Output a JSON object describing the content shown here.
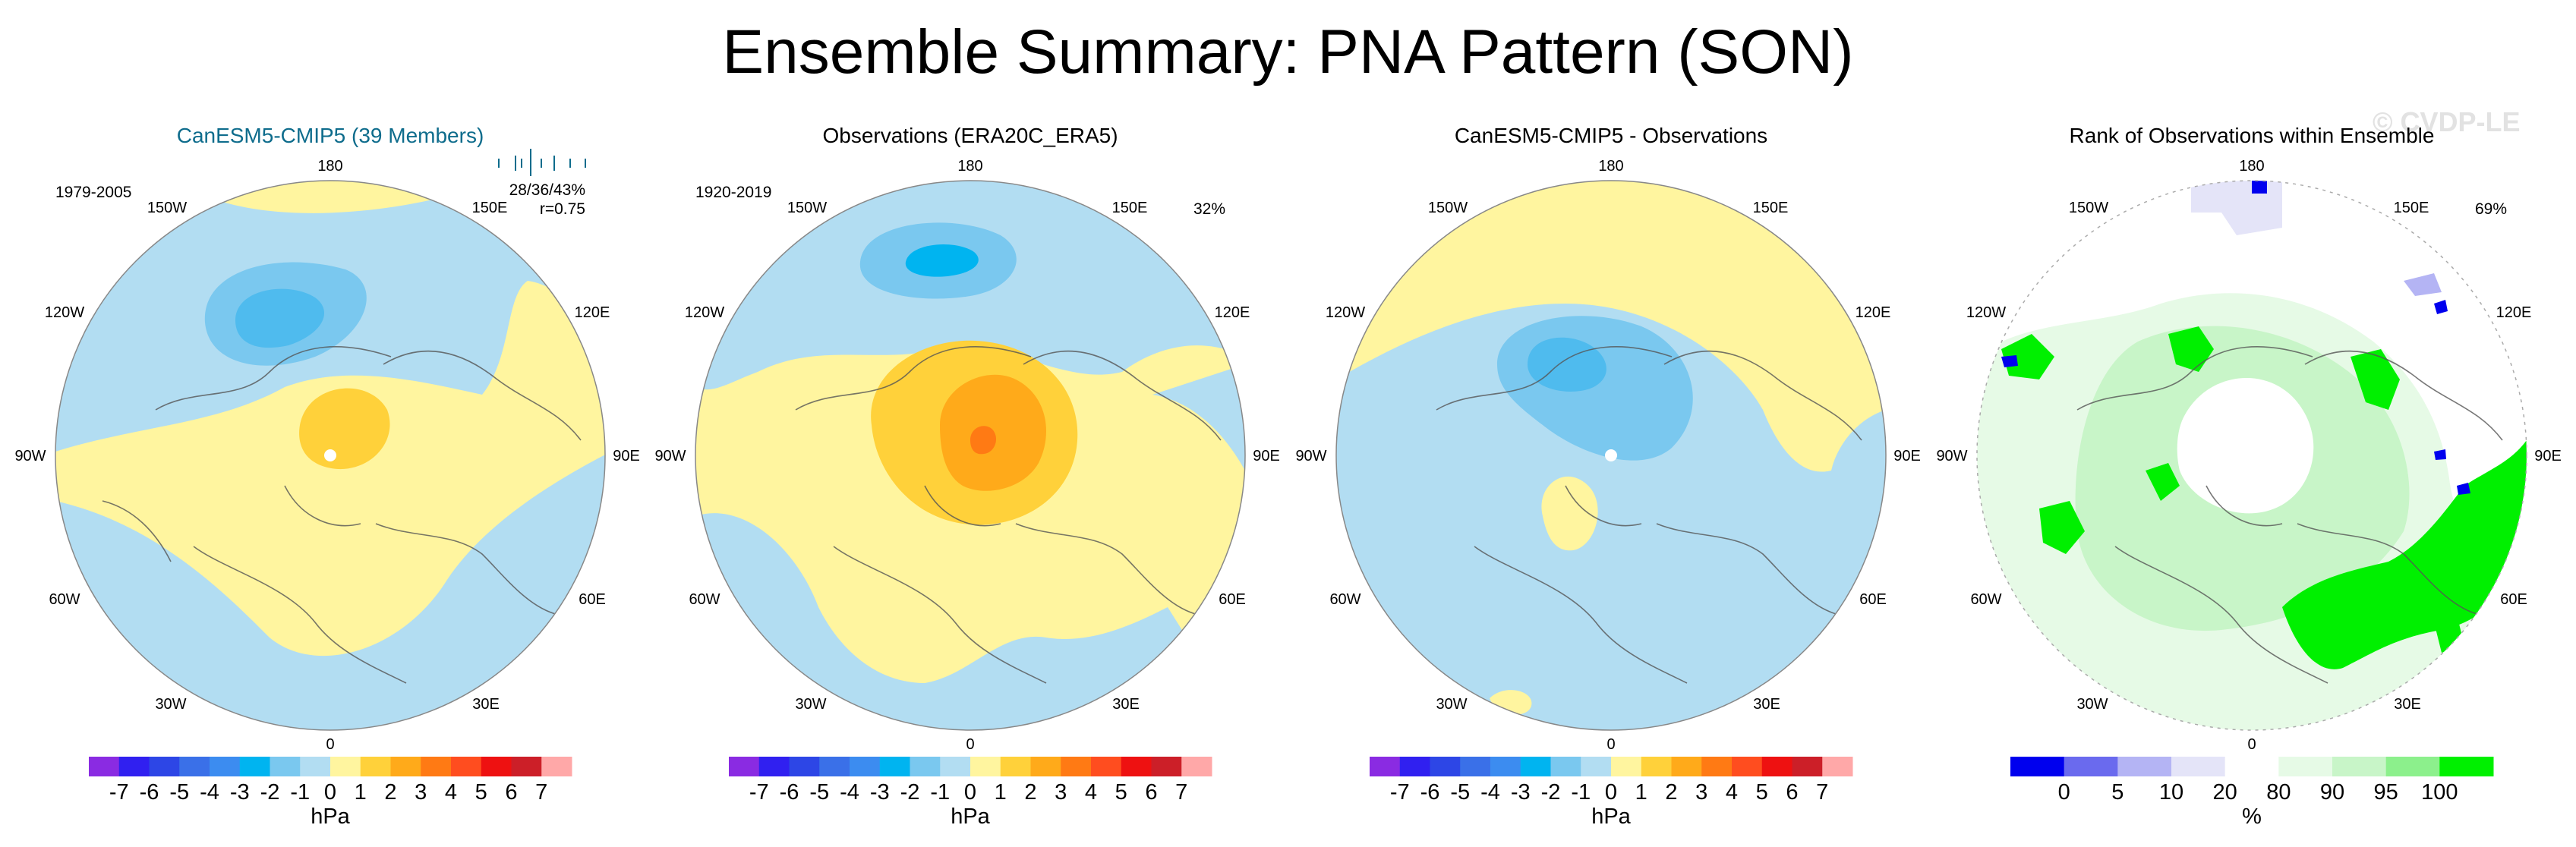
{
  "title": "Ensemble Summary: PNA Pattern (SON)",
  "watermark": "© CVDP-LE",
  "colors": {
    "neg_light": "#b2ddf2",
    "neg_mid": "#7ac8ef",
    "neg_strong": "#4fbbee",
    "neg_core": "#00b4f0",
    "pos_light": "#fff59f",
    "pos_mid": "#ffd13a",
    "pos_strong": "#ffaa1a",
    "pos_core": "#ff7a14",
    "rank_green": "#00f000",
    "rank_blue": "#0000ee",
    "rank_light_green": "#d9f8d9",
    "title_blue": "#0e6c8c",
    "land_line": "#555555"
  },
  "chart_data": [
    {
      "type": "heatmap",
      "title": "CanESM5-CMIP5 (39 Members)",
      "period": "1979-2005",
      "stats": [
        "28/36/43%",
        "r=0.75"
      ],
      "lon_labels": [
        "180",
        "150E",
        "120E",
        "90E",
        "60E",
        "30E",
        "0",
        "30W",
        "60W",
        "90W",
        "120W",
        "150W"
      ],
      "colorbar": {
        "ticks": [
          "-7",
          "-6",
          "-5",
          "-4",
          "-3",
          "-2",
          "-1",
          "0",
          "1",
          "2",
          "3",
          "4",
          "5",
          "6",
          "7"
        ],
        "label": "hPa",
        "colors": [
          "#8a2be2",
          "#3020f0",
          "#2d46e6",
          "#3a70e8",
          "#3c8cf0",
          "#00b4f0",
          "#7ac8ef",
          "#b2ddf2",
          "#fff59f",
          "#ffd13a",
          "#ffaa1a",
          "#ff7a14",
          "#ff4d1f",
          "#ee1111",
          "#cc1f28",
          "#ffa8a8"
        ]
      }
    },
    {
      "type": "heatmap",
      "title": "Observations (ERA20C_ERA5)",
      "period": "1920-2019",
      "percent": "32%",
      "lon_labels": [
        "180",
        "150E",
        "120E",
        "90E",
        "60E",
        "30E",
        "0",
        "30W",
        "60W",
        "90W",
        "120W",
        "150W"
      ],
      "colorbar": {
        "ticks": [
          "-7",
          "-6",
          "-5",
          "-4",
          "-3",
          "-2",
          "-1",
          "0",
          "1",
          "2",
          "3",
          "4",
          "5",
          "6",
          "7"
        ],
        "label": "hPa",
        "colors": [
          "#8a2be2",
          "#3020f0",
          "#2d46e6",
          "#3a70e8",
          "#3c8cf0",
          "#00b4f0",
          "#7ac8ef",
          "#b2ddf2",
          "#fff59f",
          "#ffd13a",
          "#ffaa1a",
          "#ff7a14",
          "#ff4d1f",
          "#ee1111",
          "#cc1f28",
          "#ffa8a8"
        ]
      }
    },
    {
      "type": "heatmap",
      "title": "CanESM5-CMIP5 - Observations",
      "lon_labels": [
        "180",
        "150E",
        "120E",
        "90E",
        "60E",
        "30E",
        "0",
        "30W",
        "60W",
        "90W",
        "120W",
        "150W"
      ],
      "colorbar": {
        "ticks": [
          "-7",
          "-6",
          "-5",
          "-4",
          "-3",
          "-2",
          "-1",
          "0",
          "1",
          "2",
          "3",
          "4",
          "5",
          "6",
          "7"
        ],
        "label": "hPa",
        "colors": [
          "#8a2be2",
          "#3020f0",
          "#2d46e6",
          "#3a70e8",
          "#3c8cf0",
          "#00b4f0",
          "#7ac8ef",
          "#b2ddf2",
          "#fff59f",
          "#ffd13a",
          "#ffaa1a",
          "#ff7a14",
          "#ff4d1f",
          "#ee1111",
          "#cc1f28",
          "#ffa8a8"
        ]
      }
    },
    {
      "type": "heatmap",
      "title": "Rank of Observations within Ensemble",
      "percent": "69%",
      "lon_labels": [
        "180",
        "150E",
        "120E",
        "90E",
        "60E",
        "30E",
        "0",
        "30W",
        "60W",
        "90W",
        "120W",
        "150W"
      ],
      "colorbar": {
        "ticks": [
          "0",
          "5",
          "10",
          "20",
          "80",
          "90",
          "95",
          "100"
        ],
        "label": "%",
        "colors": [
          "#0000ee",
          "#6a6aee",
          "#b4b4f4",
          "#e4e4f8",
          "#ffffff",
          "#e6fae6",
          "#c8f5c8",
          "#8cf08c",
          "#00f000"
        ]
      }
    }
  ]
}
